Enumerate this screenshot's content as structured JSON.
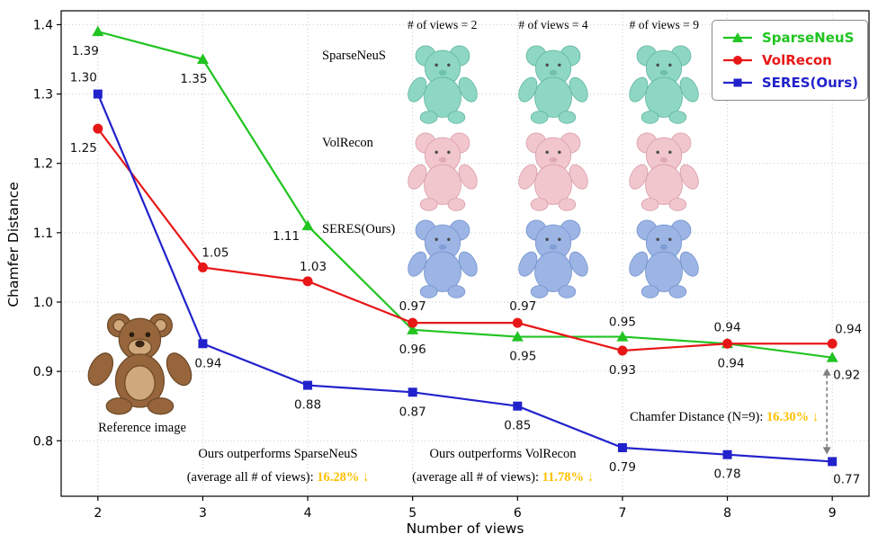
{
  "chart_data": {
    "type": "line",
    "title": "",
    "xlabel": "Number of views",
    "ylabel": "Chamfer Distance",
    "x": [
      2,
      3,
      4,
      5,
      6,
      7,
      8,
      9
    ],
    "xticks": [
      2,
      3,
      4,
      5,
      6,
      7,
      8,
      9
    ],
    "yticks": [
      0.8,
      0.9,
      1.0,
      1.1,
      1.2,
      1.3,
      1.4
    ],
    "xlim": [
      1.65,
      9.35
    ],
    "ylim": [
      0.72,
      1.42
    ],
    "grid": true,
    "legend_position": "upper right",
    "series": [
      {
        "name": "SparseNeuS",
        "color": "#21c421",
        "marker": "triangle",
        "values": [
          1.39,
          1.35,
          1.11,
          0.96,
          0.95,
          0.95,
          0.94,
          0.92
        ],
        "label_offsets": [
          [
            -14,
            26
          ],
          [
            -10,
            26
          ],
          [
            -24,
            16
          ],
          [
            0,
            26
          ],
          [
            6,
            26
          ],
          [
            0,
            -12
          ],
          [
            4,
            26
          ],
          [
            16,
            24
          ]
        ]
      },
      {
        "name": "VolRecon",
        "color": "#e81717",
        "marker": "circle",
        "values": [
          1.25,
          1.05,
          1.03,
          0.97,
          0.97,
          0.93,
          0.94,
          0.94
        ],
        "label_offsets": [
          [
            -16,
            26
          ],
          [
            14,
            -12
          ],
          [
            6,
            -12
          ],
          [
            0,
            -14
          ],
          [
            6,
            -14
          ],
          [
            0,
            26
          ],
          [
            0,
            -14
          ],
          [
            18,
            -12
          ]
        ]
      },
      {
        "name": "SERES(Ours)",
        "color": "#2222cc",
        "marker": "square",
        "values": [
          1.3,
          0.94,
          0.88,
          0.87,
          0.85,
          0.79,
          0.78,
          0.77
        ],
        "label_offsets": [
          [
            -16,
            -14
          ],
          [
            6,
            26
          ],
          [
            0,
            26
          ],
          [
            0,
            26
          ],
          [
            0,
            26
          ],
          [
            0,
            26
          ],
          [
            0,
            26
          ],
          [
            16,
            24
          ]
        ]
      }
    ]
  },
  "inset": {
    "col_headers": [
      "# of views = 2",
      "# of views = 4",
      "# of views = 9"
    ],
    "rows": [
      {
        "label": "SparseNeuS",
        "fill": "#8ed7c4",
        "edge": "#63b8a2"
      },
      {
        "label": "VolRecon",
        "fill": "#f2c6cd",
        "edge": "#d9a0ab"
      },
      {
        "label": "SERES(Ours)",
        "fill": "#9cb5e5",
        "edge": "#7795cf"
      }
    ]
  },
  "reference": {
    "caption": "Reference image",
    "fur": "#96653c",
    "light": "#cfa87c",
    "dark": "#6e4a28"
  },
  "annotations": {
    "highlight_color": "#ffc000",
    "arrow_color": "#808080",
    "sparseneus": {
      "line1": "Ours outperforms SparseNeuS",
      "line2": "(average all # of views): ",
      "value": "16.28%",
      "arrow": "↓"
    },
    "volrecon": {
      "line1": "Ours outperforms VolRecon",
      "line2": "(average all # of views): ",
      "value": "11.78%",
      "arrow": "↓"
    },
    "n9": {
      "text": "Chamfer Distance (N=9): ",
      "value": "16.30%",
      "arrow": "↓"
    }
  }
}
